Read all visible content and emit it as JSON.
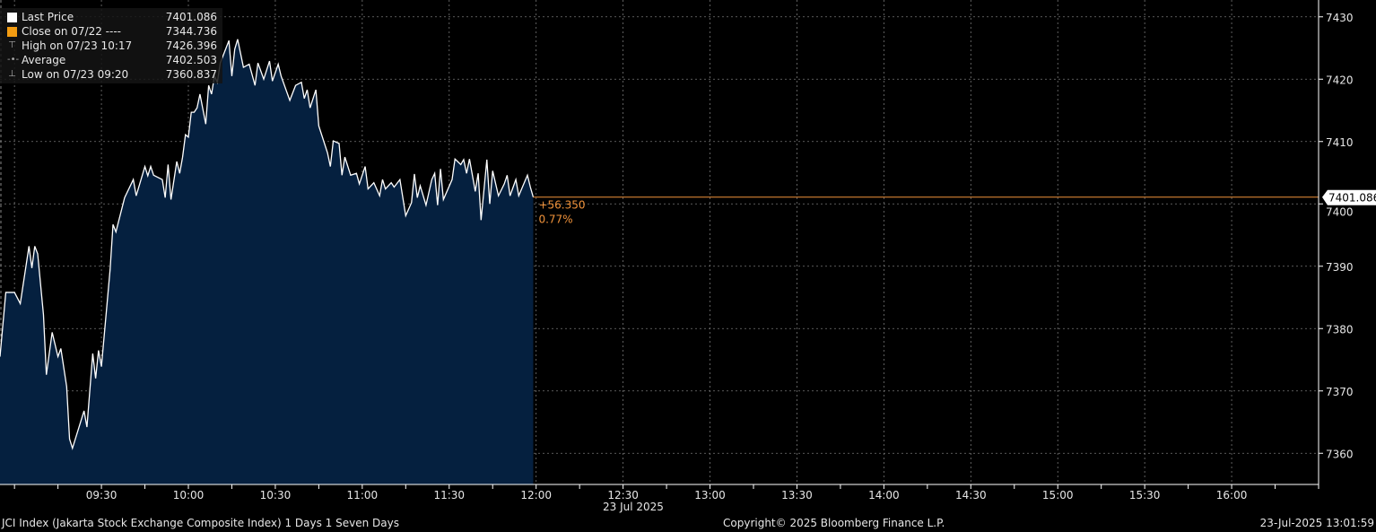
{
  "legend": {
    "items": [
      {
        "label": "Last Price",
        "value": "7401.086",
        "color": "#ffffff",
        "icon": "square"
      },
      {
        "label": "Close on 07/22 ----",
        "value": "7344.736",
        "color": "#f39c12",
        "icon": "square"
      },
      {
        "label": "High on 07/23 10:17",
        "value": "7426.396",
        "icon": "high-marker-icon"
      },
      {
        "label": "Average",
        "value": "7402.503",
        "icon": "average-marker-icon"
      },
      {
        "label": "Low on 07/23 09:20",
        "value": "7360.837",
        "icon": "low-marker-icon"
      }
    ]
  },
  "change": {
    "absolute": "+56.350",
    "percent": "0.77%",
    "color": "#f0923a"
  },
  "last_price_tag": "7401.086",
  "date_label": "23 Jul 2025",
  "footer": {
    "left": "JCI Index (Jakarta Stock Exchange Composite Index) 1 Days 1 Seven Days",
    "center": "Copyright© 2025 Bloomberg Finance L.P.",
    "right": "23-Jul-2025 13:01:59"
  },
  "chart_data": {
    "type": "area",
    "xlim": [
      "08:55",
      "16:30"
    ],
    "ylim": [
      7355,
      7432.7
    ],
    "grid": true,
    "x_tick_labels": [
      "09:30",
      "10:00",
      "10:30",
      "11:00",
      "11:30",
      "12:00",
      "12:30",
      "13:00",
      "13:30",
      "14:00",
      "14:30",
      "15:00",
      "15:30",
      "16:00"
    ],
    "y_tick_labels": [
      7360,
      7370,
      7380,
      7390,
      7400,
      7410,
      7420,
      7430
    ],
    "colors": {
      "line": "#ffffff",
      "fill": "#05203f",
      "last_price_line": "#f0923a"
    },
    "series": [
      {
        "x": [
          "08:55",
          "08:57",
          "09:00",
          "09:02",
          "09:05",
          "09:06",
          "09:07",
          "09:08",
          "09:10",
          "09:11",
          "09:13",
          "09:15",
          "09:16",
          "09:18",
          "09:19",
          "09:20",
          "09:24",
          "09:25",
          "09:27",
          "09:28",
          "09:29",
          "09:30",
          "09:33",
          "09:34",
          "09:35",
          "09:38",
          "09:41",
          "09:42",
          "09:45",
          "09:46",
          "09:47",
          "09:48",
          "09:51",
          "09:52",
          "09:53",
          "09:54",
          "09:56",
          "09:57",
          "09:58",
          "09:59",
          "10:00",
          "10:01",
          "10:02",
          "10:03",
          "10:04",
          "10:06",
          "10:07",
          "10:08",
          "10:09",
          "10:10",
          "10:11",
          "10:12",
          "10:14",
          "10:15",
          "10:16",
          "10:17",
          "10:19",
          "10:21",
          "10:23",
          "10:24",
          "10:26",
          "10:28",
          "10:29",
          "10:31",
          "10:32",
          "10:35",
          "10:37",
          "10:39",
          "10:40",
          "10:41",
          "10:42",
          "10:44",
          "10:45",
          "10:48",
          "10:49",
          "10:50",
          "10:52",
          "10:53",
          "10:54",
          "10:56",
          "10:58",
          "10:59",
          "11:01",
          "11:02",
          "11:04",
          "11:06",
          "11:07",
          "11:08",
          "11:10",
          "11:11",
          "11:13",
          "11:15",
          "11:17",
          "11:18",
          "11:19",
          "11:20",
          "11:22",
          "11:24",
          "11:25",
          "11:26",
          "11:27",
          "11:28",
          "11:31",
          "11:32",
          "11:34",
          "11:35",
          "11:36",
          "11:37",
          "11:38",
          "11:39",
          "11:40",
          "11:41",
          "11:43",
          "11:44",
          "11:45",
          "11:47",
          "11:49",
          "11:50",
          "11:51",
          "11:53",
          "11:54",
          "11:57",
          "11:58",
          "11:59"
        ],
        "y": [
          7375.5,
          7385.8,
          7385.8,
          7384.0,
          7393.2,
          7389.7,
          7393.2,
          7392.0,
          7382.2,
          7372.6,
          7379.4,
          7375.5,
          7376.8,
          7370.7,
          7362.3,
          7360.8,
          7366.8,
          7364.2,
          7376.0,
          7372.0,
          7376.5,
          7373.9,
          7389.5,
          7396.7,
          7395.5,
          7401.0,
          7403.9,
          7401.3,
          7406.0,
          7404.5,
          7406.0,
          7404.6,
          7403.9,
          7401.0,
          7406.3,
          7400.7,
          7406.8,
          7404.9,
          7407.5,
          7411.1,
          7410.7,
          7414.7,
          7414.7,
          7415.4,
          7417.6,
          7412.8,
          7419.0,
          7417.6,
          7420.5,
          7419.5,
          7422.6,
          7423.8,
          7426.2,
          7420.5,
          7424.8,
          7426.4,
          7421.9,
          7422.4,
          7419.0,
          7422.6,
          7420.0,
          7422.9,
          7419.7,
          7422.4,
          7420.5,
          7416.6,
          7419.0,
          7419.5,
          7416.9,
          7418.3,
          7415.4,
          7418.3,
          7412.5,
          7408.2,
          7406.0,
          7410.1,
          7409.7,
          7404.6,
          7407.5,
          7404.6,
          7404.9,
          7403.2,
          7406.0,
          7402.4,
          7403.4,
          7401.3,
          7403.9,
          7402.4,
          7403.4,
          7402.7,
          7403.9,
          7398.1,
          7400.2,
          7404.8,
          7401.0,
          7402.9,
          7399.8,
          7403.9,
          7404.9,
          7399.8,
          7405.6,
          7400.7,
          7403.9,
          7407.2,
          7406.3,
          7407.1,
          7404.9,
          7407.2,
          7404.6,
          7402.0,
          7404.9,
          7397.4,
          7407.1,
          7400.0,
          7405.3,
          7401.3,
          7403.2,
          7404.6,
          7401.3,
          7403.9,
          7401.3,
          7404.6,
          7402.7,
          7401.086
        ]
      }
    ],
    "last_price": 7401.086
  }
}
